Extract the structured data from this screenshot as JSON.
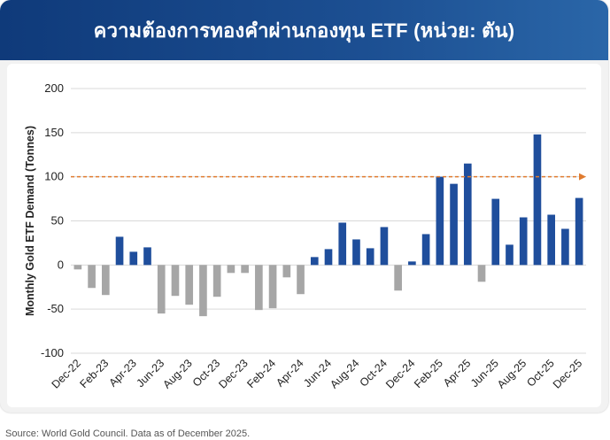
{
  "header": {
    "title": "ความต้องการทองคำผ่านกองทุน ETF (หน่วย: ตัน)"
  },
  "source": "Source: World Gold Council. Data as of December 2025.",
  "colors": {
    "positive": "#1f4e9c",
    "negative": "#a6a6a6",
    "reference": "#e07b2f",
    "header": "#174784"
  },
  "chart_data": {
    "type": "bar",
    "title": "ความต้องการทองคำผ่านกองทุน ETF (หน่วย: ตัน)",
    "xlabel": "",
    "ylabel": "Monthly Gold ETF Demand (Tonnes)",
    "ylim": [
      -100,
      200
    ],
    "yticks": [
      200,
      150,
      100,
      50,
      0,
      -50,
      -100
    ],
    "grid": true,
    "reference_line": 100,
    "categories": [
      "Dec-22",
      "Jan-23",
      "Feb-23",
      "Mar-23",
      "Apr-23",
      "May-23",
      "Jun-23",
      "Jul-23",
      "Aug-23",
      "Sep-23",
      "Oct-23",
      "Nov-23",
      "Dec-23",
      "Jan-24",
      "Feb-24",
      "Mar-24",
      "Apr-24",
      "May-24",
      "Jun-24",
      "Jul-24",
      "Aug-24",
      "Sep-24",
      "Oct-24",
      "Nov-24",
      "Dec-24",
      "Jan-25",
      "Feb-25",
      "Mar-25",
      "Apr-25",
      "May-25",
      "Jun-25",
      "Jul-25",
      "Aug-25",
      "Sep-25",
      "Oct-25",
      "Nov-25",
      "Dec-25"
    ],
    "tick_labels": [
      "Dec-22",
      "",
      "Feb-23",
      "",
      "Apr-23",
      "",
      "Jun-23",
      "",
      "Aug-23",
      "",
      "Oct-23",
      "",
      "Dec-23",
      "",
      "Feb-24",
      "",
      "Apr-24",
      "",
      "Jun-24",
      "",
      "Aug-24",
      "",
      "Oct-24",
      "",
      "Dec-24",
      "",
      "Feb-25",
      "",
      "Apr-25",
      "",
      "Jun-25",
      "",
      "Aug-25",
      "",
      "Oct-25",
      "",
      "Dec-25"
    ],
    "values": [
      -5,
      -26,
      -34,
      32,
      15,
      20,
      -55,
      -35,
      -45,
      -58,
      -36,
      -9,
      -9,
      -51,
      -49,
      -14,
      -33,
      9,
      18,
      48,
      29,
      19,
      43,
      -29,
      4,
      35,
      100,
      92,
      115,
      -19,
      75,
      23,
      54,
      148,
      57,
      41,
      76
    ]
  }
}
